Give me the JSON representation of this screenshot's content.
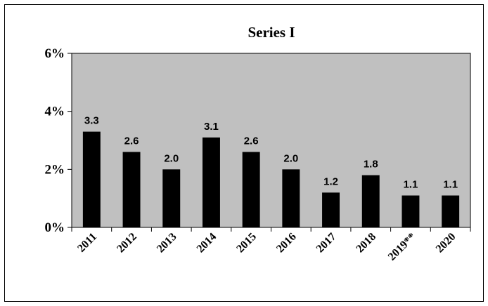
{
  "chart_data": {
    "type": "bar",
    "title": "Series I",
    "categories": [
      "2011",
      "2012",
      "2013",
      "2014",
      "2015",
      "2016",
      "2017",
      "2018",
      "2019**",
      "2020"
    ],
    "series": [
      {
        "values": [
          3.3,
          2.6,
          2.0,
          3.1,
          2.6,
          2.0,
          1.2,
          1.8,
          1.1,
          1.1
        ],
        "data_labels": [
          "3.3",
          "2.6",
          "2.0",
          "3.1",
          "2.6",
          "2.0",
          "1.2",
          "1.8",
          "1.1",
          "1.1"
        ]
      }
    ],
    "ylim": [
      0,
      6
    ],
    "yticks": [
      0,
      2,
      4,
      6
    ],
    "ytick_labels": [
      "0%",
      "2%",
      "4%",
      "6%"
    ],
    "xlabel": "",
    "ylabel": "",
    "grid": false,
    "legend": "none",
    "colors": {
      "plot_background": "#C0C0C0",
      "bar": "#000000",
      "axis": "#000000"
    }
  }
}
